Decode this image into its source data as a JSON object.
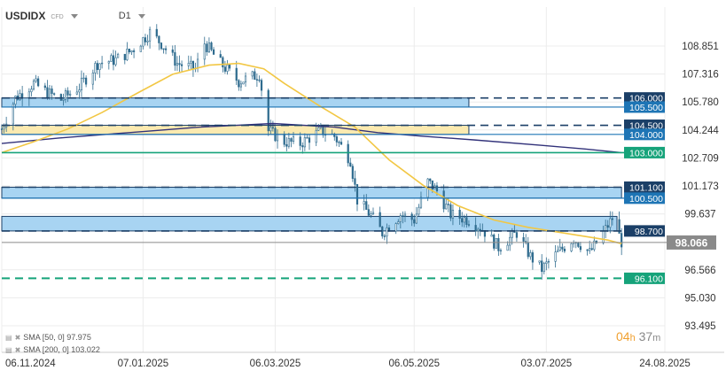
{
  "header": {
    "symbol": "USDIDX",
    "symbol_sub": "CFD",
    "timeframe": "D1"
  },
  "indicators": [
    {
      "label": "SMA [50, 0] 97.975"
    },
    {
      "label": "SMA [200, 0] 103.022"
    }
  ],
  "timer": {
    "hours": "04",
    "hours_unit": "h",
    "minutes": "37",
    "minutes_unit": "m"
  },
  "colors": {
    "candle": "#2e6b8e",
    "sma50": "#f2c744",
    "sma200": "#32327a",
    "zone_blue": "#a8d4f2",
    "zone_yellow": "#fbeab0",
    "accent_green": "#16a37a",
    "label_blue": "#1e75b5",
    "label_navy": "#1b3f67",
    "current_price": "#8a8a8a"
  },
  "chart_data": {
    "type": "candlestick",
    "symbol": "USDIDX",
    "timeframe": "D1",
    "x_range": [
      "2024-11-06",
      "2025-08-24"
    ],
    "x_ticks": [
      "06.11.2024",
      "07.01.2025",
      "06.03.2025",
      "06.05.2025",
      "03.07.2025",
      "24.08.2025"
    ],
    "y_ticks": [
      "108.851",
      "107.316",
      "105.780",
      "104.244",
      "102.709",
      "101.173",
      "99.637",
      "98.066",
      "96.566",
      "95.030",
      "93.495"
    ],
    "ylim": [
      93.495,
      110.3
    ],
    "current_price": {
      "label": "98.066",
      "value": 98.066
    },
    "levels": [
      {
        "label": "106.000",
        "value": 106.0,
        "style": "dashed",
        "box": "navy"
      },
      {
        "label": "105.500",
        "value": 105.5,
        "style": "solid",
        "box": "blue"
      },
      {
        "label": "104.500",
        "value": 104.5,
        "style": "dashed",
        "box": "navy"
      },
      {
        "label": "104.000",
        "value": 104.0,
        "style": "solid",
        "box": "blue"
      },
      {
        "label": "103.000",
        "value": 103.0,
        "style": "solid-green",
        "box": "green"
      },
      {
        "label": "101.100",
        "value": 101.1,
        "style": "dashed",
        "box": "navy"
      },
      {
        "label": "100.500",
        "value": 100.5,
        "style": "solid",
        "box": "blue"
      },
      {
        "label": "98.700",
        "value": 98.7,
        "style": "dashed",
        "box": "navy"
      },
      {
        "label": "96.100",
        "value": 96.1,
        "style": "dashed-green",
        "box": "green"
      }
    ],
    "zones": [
      {
        "color": "blue",
        "from": 105.5,
        "to": 106.0,
        "start": "2024-11-06",
        "end": "2025-05-30"
      },
      {
        "color": "yellow",
        "from": 104.0,
        "to": 104.5,
        "start": "2024-11-06",
        "end": "2025-05-30"
      },
      {
        "color": "blue",
        "from": 100.5,
        "to": 101.1,
        "start": "2024-11-06",
        "end": "2025-08-05"
      },
      {
        "color": "blue",
        "from": 98.7,
        "to": 99.5,
        "start": "2024-11-06",
        "end": "2025-08-03"
      }
    ],
    "sma50": [
      [
        "2024-11-06",
        103.0
      ],
      [
        "2024-11-20",
        103.6
      ],
      [
        "2024-12-05",
        104.3
      ],
      [
        "2024-12-20",
        105.2
      ],
      [
        "2025-01-05",
        106.3
      ],
      [
        "2025-01-20",
        107.3
      ],
      [
        "2025-02-05",
        107.8
      ],
      [
        "2025-02-18",
        107.9
      ],
      [
        "2025-03-01",
        107.6
      ],
      [
        "2025-03-10",
        106.8
      ],
      [
        "2025-03-25",
        105.6
      ],
      [
        "2025-04-10",
        104.4
      ],
      [
        "2025-04-25",
        102.6
      ],
      [
        "2025-05-10",
        101.2
      ],
      [
        "2025-05-25",
        100.1
      ],
      [
        "2025-06-10",
        99.3
      ],
      [
        "2025-06-25",
        98.9
      ],
      [
        "2025-07-10",
        98.6
      ],
      [
        "2025-07-20",
        98.4
      ],
      [
        "2025-07-30",
        98.2
      ],
      [
        "2025-08-05",
        98.0
      ]
    ],
    "sma200": [
      [
        "2024-11-06",
        103.5
      ],
      [
        "2024-12-01",
        103.8
      ],
      [
        "2025-01-01",
        104.1
      ],
      [
        "2025-02-01",
        104.4
      ],
      [
        "2025-03-05",
        104.6
      ],
      [
        "2025-04-01",
        104.4
      ],
      [
        "2025-04-20",
        104.1
      ],
      [
        "2025-05-10",
        103.9
      ],
      [
        "2025-06-01",
        103.7
      ],
      [
        "2025-07-01",
        103.4
      ],
      [
        "2025-07-20",
        103.2
      ],
      [
        "2025-08-05",
        103.0
      ]
    ],
    "price_path": [
      [
        "2024-11-06",
        104.3
      ],
      [
        "2024-11-12",
        106.0
      ],
      [
        "2024-11-20",
        106.8
      ],
      [
        "2024-11-26",
        106.3
      ],
      [
        "2024-12-02",
        105.9
      ],
      [
        "2024-12-10",
        106.6
      ],
      [
        "2024-12-18",
        107.9
      ],
      [
        "2024-12-26",
        108.1
      ],
      [
        "2025-01-02",
        108.6
      ],
      [
        "2025-01-10",
        109.6
      ],
      [
        "2025-01-15",
        109.0
      ],
      [
        "2025-01-22",
        107.9
      ],
      [
        "2025-01-30",
        107.6
      ],
      [
        "2025-02-03",
        109.0
      ],
      [
        "2025-02-10",
        107.9
      ],
      [
        "2025-02-18",
        106.9
      ],
      [
        "2025-02-27",
        107.3
      ],
      [
        "2025-03-03",
        104.2
      ],
      [
        "2025-03-10",
        103.6
      ],
      [
        "2025-03-17",
        103.5
      ],
      [
        "2025-03-26",
        104.2
      ],
      [
        "2025-04-01",
        103.9
      ],
      [
        "2025-04-08",
        102.6
      ],
      [
        "2025-04-11",
        100.4
      ],
      [
        "2025-04-18",
        99.4
      ],
      [
        "2025-04-22",
        98.6
      ],
      [
        "2025-04-30",
        99.6
      ],
      [
        "2025-05-06",
        99.3
      ],
      [
        "2025-05-12",
        101.4
      ],
      [
        "2025-05-16",
        100.9
      ],
      [
        "2025-05-22",
        99.6
      ],
      [
        "2025-05-30",
        99.3
      ],
      [
        "2025-06-05",
        98.8
      ],
      [
        "2025-06-12",
        97.8
      ],
      [
        "2025-06-20",
        98.6
      ],
      [
        "2025-06-26",
        97.3
      ],
      [
        "2025-07-01",
        96.6
      ],
      [
        "2025-07-08",
        97.5
      ],
      [
        "2025-07-15",
        98.3
      ],
      [
        "2025-07-22",
        97.5
      ],
      [
        "2025-07-28",
        98.6
      ],
      [
        "2025-08-01",
        99.4
      ],
      [
        "2025-08-05",
        98.1
      ]
    ]
  }
}
